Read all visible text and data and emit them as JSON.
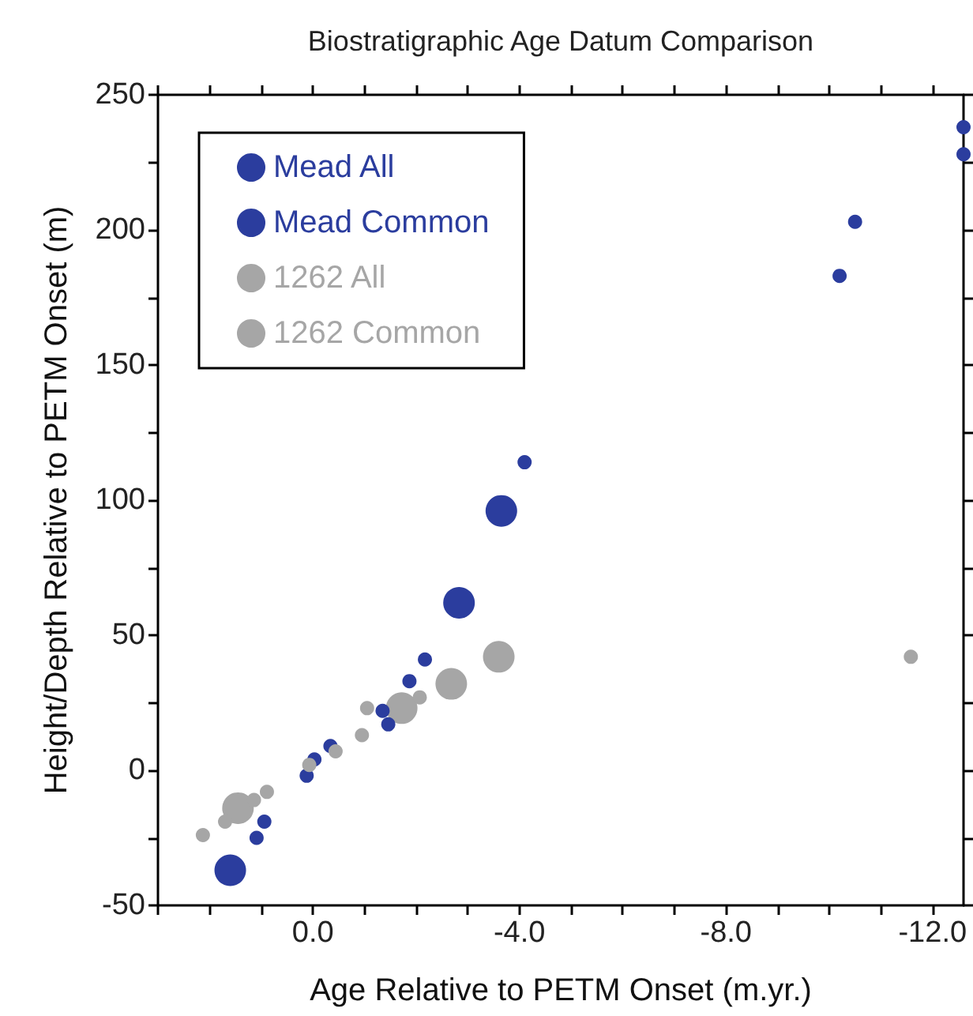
{
  "chart_data": {
    "type": "scatter",
    "title": "Biostratigraphic Age Datum Comparison",
    "xlabel": "Age Relative to PETM Onset (m.yr.)",
    "ylabel": "Height/Depth Relative to PETM Onset (m)",
    "xlim": [
      3,
      -12.6
    ],
    "ylim": [
      -50,
      250
    ],
    "xticks": [
      {
        "value": 3,
        "label": null
      },
      {
        "value": 2,
        "label": null
      },
      {
        "value": 1,
        "label": null
      },
      {
        "value": 0,
        "label": "0.0"
      },
      {
        "value": -1,
        "label": null
      },
      {
        "value": -2,
        "label": null
      },
      {
        "value": -3,
        "label": null
      },
      {
        "value": -4,
        "label": "-4.0"
      },
      {
        "value": -5,
        "label": null
      },
      {
        "value": -6,
        "label": null
      },
      {
        "value": -7,
        "label": null
      },
      {
        "value": -8,
        "label": "-8.0"
      },
      {
        "value": -9,
        "label": null
      },
      {
        "value": -10,
        "label": null
      },
      {
        "value": -11,
        "label": null
      },
      {
        "value": -12,
        "label": "-12.0"
      }
    ],
    "yticks": [
      -50,
      {
        "value": -25,
        "label": null
      },
      0,
      {
        "value": 25,
        "label": null
      },
      50,
      {
        "value": 75,
        "label": null
      },
      100,
      {
        "value": 125,
        "label": null
      },
      150,
      {
        "value": 175,
        "label": null
      },
      200,
      {
        "value": 225,
        "label": null
      },
      250
    ],
    "grid": false,
    "legend": "top left",
    "marker": "circle",
    "series": [
      {
        "name": "Mead All",
        "color": "#2b3d9e",
        "x": [
          -12.6,
          -12.6,
          -10.5,
          -10.2,
          -4.1,
          -2.17,
          -1.87,
          -1.35,
          -1.46,
          -0.34,
          -0.03,
          0.12,
          0.94,
          1.09
        ],
        "values": [
          238,
          228,
          203,
          183,
          114,
          41,
          33,
          22,
          17,
          9,
          4,
          -2,
          -19,
          -25
        ]
      },
      {
        "name": "Mead Common",
        "color": "#2b3d9e",
        "x": [
          1.6,
          -2.83,
          -3.65
        ],
        "values": [
          -37,
          62,
          96
        ]
      },
      {
        "name": "1262 All",
        "color": "#a6a6a6",
        "x": [
          2.13,
          0.89,
          1.14,
          1.7,
          -1.05,
          -0.95,
          -0.44,
          0.07,
          -2.07,
          -11.58
        ],
        "values": [
          -24,
          -8,
          -11,
          -19,
          23,
          13,
          7,
          2,
          27,
          42
        ]
      },
      {
        "name": "1262 Common",
        "color": "#a6a6a6",
        "x": [
          1.45,
          -1.72,
          -2.68,
          -3.6
        ],
        "values": [
          -14,
          23,
          32,
          42
        ]
      }
    ]
  }
}
